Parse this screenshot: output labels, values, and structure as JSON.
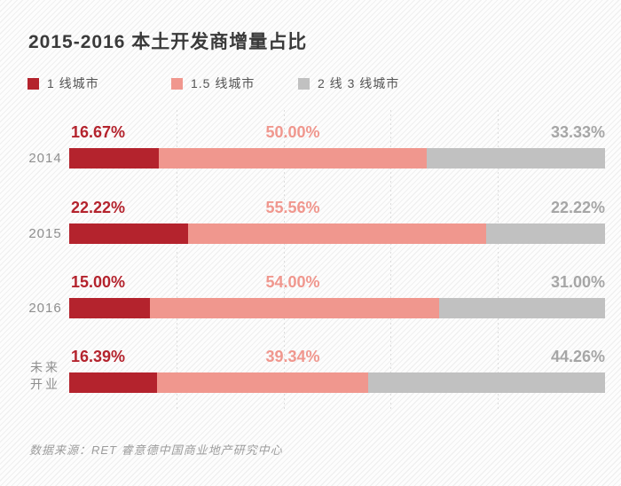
{
  "chart_data": {
    "type": "bar",
    "stacked": true,
    "orientation": "horizontal",
    "title": "2015-2016 本土开发商增量占比",
    "categories": [
      "2014",
      "2015",
      "2016",
      "未来\n开业"
    ],
    "series": [
      {
        "name": "1 线城市",
        "color": "#b4232d",
        "label_color": "#b4232d",
        "values": [
          16.67,
          22.22,
          15.0,
          16.39
        ]
      },
      {
        "name": "1.5 线城市",
        "color": "#f0978e",
        "label_color": "#f0978e",
        "values": [
          50.0,
          55.56,
          54.0,
          39.34
        ]
      },
      {
        "name": "2 线 3 线城市",
        "color": "#c1c1c1",
        "label_color": "#a6a6a6",
        "values": [
          33.33,
          22.22,
          31.0,
          44.26
        ]
      }
    ],
    "value_labels": [
      [
        "16.67%",
        "50.00%",
        "33.33%"
      ],
      [
        "22.22%",
        "55.56%",
        "22.22%"
      ],
      [
        "15.00%",
        "54.00%",
        "31.00%"
      ],
      [
        "16.39%",
        "39.34%",
        "44.26%"
      ]
    ],
    "xlim": [
      0,
      100
    ],
    "gridlines_percent": [
      20,
      40,
      60,
      80
    ],
    "legend_position": "top",
    "grid": "dotted-vertical",
    "source": "数据来源：RET 睿意德中国商业地产研究中心"
  }
}
